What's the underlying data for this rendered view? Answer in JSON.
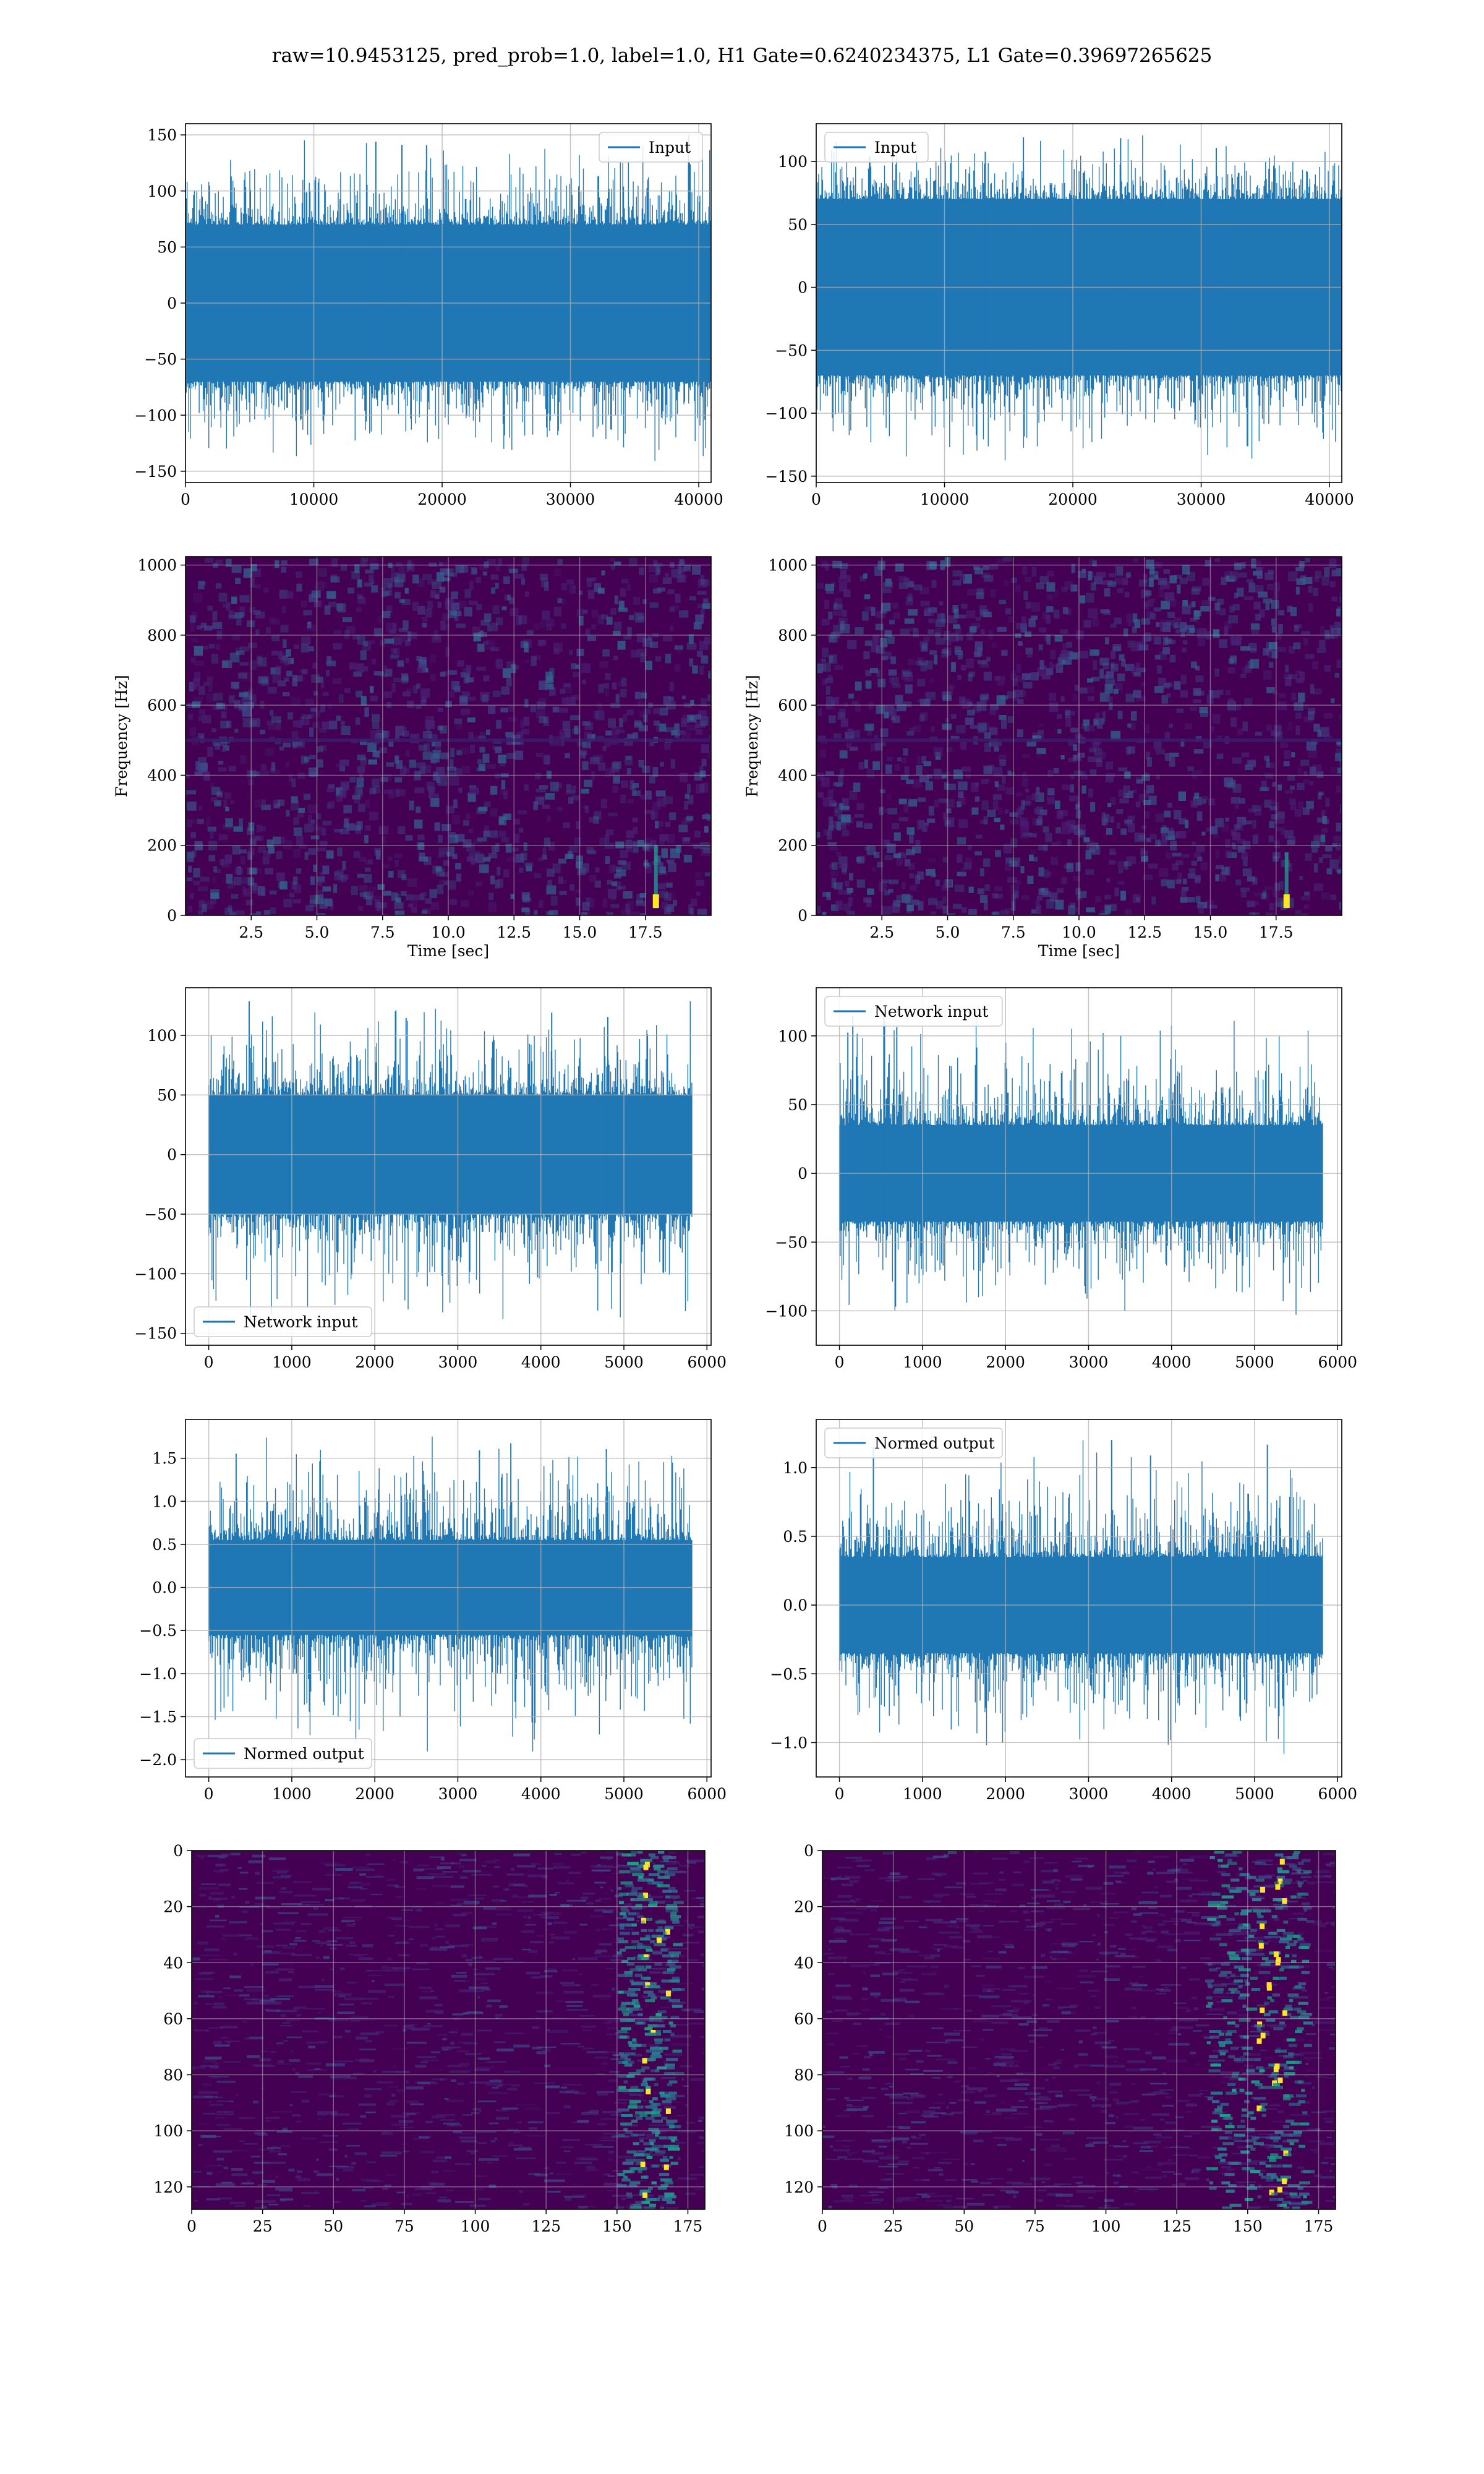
{
  "suptitle": "raw=10.9453125, pred_prob=1.0, label=1.0, H1 Gate=0.6240234375, L1 Gate=0.39697265625",
  "colors": {
    "series": "#1f77b4",
    "grid": "#b0b0b0",
    "viridis_low": "#440154",
    "viridis_mid": "#21918c",
    "viridis_high": "#fde725"
  },
  "chart_data": [
    {
      "id": "input-h1",
      "type": "line",
      "series": [
        {
          "name": "Input",
          "amplitude_band": [
            -70,
            70
          ],
          "spike_range": [
            -145,
            152
          ]
        }
      ],
      "xlim": [
        0,
        40960
      ],
      "ylim": [
        -160,
        160
      ],
      "xticks": [
        0,
        10000,
        20000,
        30000,
        40000
      ],
      "yticks": [
        -150,
        -100,
        -50,
        0,
        50,
        100,
        150
      ],
      "xlabel": "",
      "ylabel": "",
      "legend": "top-right",
      "grid": true
    },
    {
      "id": "input-l1",
      "type": "line",
      "series": [
        {
          "name": "Input",
          "amplitude_band": [
            -70,
            70
          ],
          "spike_range": [
            -145,
            125
          ]
        }
      ],
      "xlim": [
        0,
        40960
      ],
      "ylim": [
        -155,
        130
      ],
      "xticks": [
        0,
        10000,
        20000,
        30000,
        40000
      ],
      "yticks": [
        -150,
        -100,
        -50,
        0,
        50,
        100
      ],
      "xlabel": "",
      "ylabel": "",
      "legend": "top-left",
      "grid": true
    },
    {
      "id": "spectrogram-h1",
      "type": "heatmap",
      "xlim": [
        0,
        20
      ],
      "ylim": [
        0,
        1024
      ],
      "xticks": [
        2.5,
        5.0,
        7.5,
        10.0,
        12.5,
        15.0,
        17.5
      ],
      "yticks": [
        0,
        200,
        400,
        600,
        800,
        1000
      ],
      "xlabel": "Time [sec]",
      "ylabel": "Frequency [Hz]",
      "chirp": {
        "t": 17.9,
        "f_range": [
          20,
          200
        ]
      },
      "colormap": "viridis",
      "grid": true
    },
    {
      "id": "spectrogram-l1",
      "type": "heatmap",
      "xlim": [
        0,
        20
      ],
      "ylim": [
        0,
        1024
      ],
      "xticks": [
        2.5,
        5.0,
        7.5,
        10.0,
        12.5,
        15.0,
        17.5
      ],
      "yticks": [
        0,
        200,
        400,
        600,
        800,
        1000
      ],
      "xlabel": "Time [sec]",
      "ylabel": "Frequency [Hz]",
      "chirp": {
        "t": 17.9,
        "f_range": [
          20,
          180
        ]
      },
      "colormap": "viridis",
      "grid": true
    },
    {
      "id": "network-input-h1",
      "type": "line",
      "series": [
        {
          "name": "Network input",
          "amplitude_band": [
            -50,
            50
          ],
          "spike_range": [
            -145,
            130
          ]
        }
      ],
      "xlim": [
        -280,
        6050
      ],
      "ylim": [
        -160,
        140
      ],
      "xticks": [
        0,
        1000,
        2000,
        3000,
        4000,
        5000,
        6000
      ],
      "yticks": [
        -150,
        -100,
        -50,
        0,
        50,
        100
      ],
      "xlabel": "",
      "ylabel": "",
      "legend": "bottom-left",
      "grid": true
    },
    {
      "id": "network-input-l1",
      "type": "line",
      "series": [
        {
          "name": "Network input",
          "amplitude_band": [
            -35,
            35
          ],
          "spike_range": [
            -112,
            120
          ]
        }
      ],
      "xlim": [
        -280,
        6050
      ],
      "ylim": [
        -125,
        135
      ],
      "xticks": [
        0,
        1000,
        2000,
        3000,
        4000,
        5000,
        6000
      ],
      "yticks": [
        -100,
        -50,
        0,
        50,
        100
      ],
      "xlabel": "",
      "ylabel": "",
      "legend": "top-left",
      "grid": true
    },
    {
      "id": "normed-output-h1",
      "type": "line",
      "series": [
        {
          "name": "Normed output",
          "amplitude_band": [
            -0.55,
            0.55
          ],
          "spike_range": [
            -2.0,
            1.78
          ]
        }
      ],
      "xlim": [
        -280,
        6050
      ],
      "ylim": [
        -2.2,
        1.95
      ],
      "xticks": [
        0,
        1000,
        2000,
        3000,
        4000,
        5000,
        6000
      ],
      "yticks": [
        -2.0,
        -1.5,
        -1.0,
        -0.5,
        0.0,
        0.5,
        1.0,
        1.5
      ],
      "xlabel": "",
      "ylabel": "",
      "legend": "bottom-left",
      "grid": true
    },
    {
      "id": "normed-output-l1",
      "type": "line",
      "series": [
        {
          "name": "Normed output",
          "amplitude_band": [
            -0.35,
            0.35
          ],
          "spike_range": [
            -1.15,
            1.22
          ]
        }
      ],
      "xlim": [
        -280,
        6050
      ],
      "ylim": [
        -1.25,
        1.35
      ],
      "xticks": [
        0,
        1000,
        2000,
        3000,
        4000,
        5000,
        6000
      ],
      "yticks": [
        -1.0,
        -0.5,
        0.0,
        0.5,
        1.0
      ],
      "xlabel": "",
      "ylabel": "",
      "legend": "top-left",
      "grid": true
    },
    {
      "id": "features-h1",
      "type": "heatmap",
      "xlim": [
        0,
        181
      ],
      "ylim": [
        128,
        0
      ],
      "xticks": [
        0,
        25,
        50,
        75,
        100,
        125,
        150,
        175
      ],
      "yticks": [
        0,
        20,
        40,
        60,
        80,
        100,
        120
      ],
      "xlabel": "",
      "ylabel": "",
      "bright_band": {
        "x_range": [
          150,
          170
        ],
        "x_peak": 163
      },
      "colormap": "viridis",
      "grid": true
    },
    {
      "id": "features-l1",
      "type": "heatmap",
      "xlim": [
        0,
        181
      ],
      "ylim": [
        128,
        0
      ],
      "xticks": [
        0,
        25,
        50,
        75,
        100,
        125,
        150,
        175
      ],
      "yticks": [
        0,
        20,
        40,
        60,
        80,
        100,
        120
      ],
      "xlabel": "",
      "ylabel": "",
      "bright_band": {
        "x_range": [
          135,
          170
        ],
        "x_peak": 158
      },
      "colormap": "viridis",
      "grid": true
    }
  ]
}
